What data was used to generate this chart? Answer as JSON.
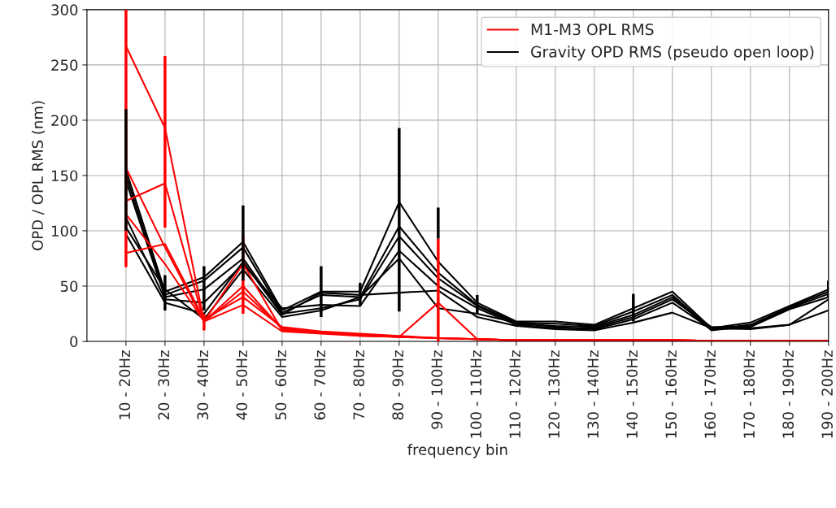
{
  "chart_data": {
    "type": "line",
    "xlabel": "frequency bin",
    "ylabel": "OPD / OPL RMS (nm)",
    "categories": [
      "10 - 20Hz",
      "20 - 30Hz",
      "30 - 40Hz",
      "40 - 50Hz",
      "50 - 60Hz",
      "60 - 70Hz",
      "70 - 80Hz",
      "80 - 90Hz",
      "90 - 100Hz",
      "100 - 110Hz",
      "110 - 120Hz",
      "120 - 130Hz",
      "130 - 140Hz",
      "140 - 150Hz",
      "150 - 160Hz",
      "160 - 170Hz",
      "170 - 180Hz",
      "180 - 190Hz",
      "190 - 200Hz"
    ],
    "ylim": [
      0,
      300
    ],
    "yticks": [
      0,
      50,
      100,
      150,
      200,
      250,
      300
    ],
    "grid": true,
    "legend": "top right",
    "marker": "none",
    "line_style": "solid",
    "series": [
      {
        "name": "M1-M3 OPL RMS",
        "color": "#ff0000",
        "values": [
          267,
          193,
          18,
          45,
          12,
          8,
          6,
          4,
          3,
          2,
          1,
          1,
          1,
          1,
          1,
          0.5,
          0.5,
          0.5,
          0.5
        ],
        "errors": [
          [
            67,
            300
          ],
          [
            103,
            258
          ],
          [
            10,
            25
          ],
          null,
          null,
          null,
          null,
          null,
          null,
          null,
          null,
          null,
          null,
          null,
          null,
          null,
          null,
          null,
          null
        ]
      },
      {
        "color": "#ff0000",
        "values": [
          127,
          143,
          18,
          70,
          10,
          8,
          5,
          4,
          35,
          2,
          1,
          1,
          1,
          1,
          1,
          0.5,
          0.5,
          0.5,
          0.5
        ],
        "errors": [
          null,
          null,
          null,
          [
            25,
            95
          ],
          null,
          null,
          null,
          null,
          [
            0,
            93
          ],
          null,
          null,
          null,
          null,
          null,
          null,
          null,
          null,
          null,
          null
        ]
      },
      {
        "color": "#ff0000",
        "values": [
          80,
          88,
          20,
          40,
          13,
          9,
          7,
          5,
          3,
          2,
          1,
          1,
          1,
          1,
          1,
          0.5,
          0.5,
          0.5,
          0.5
        ]
      },
      {
        "color": "#ff0000",
        "values": [
          157,
          85,
          18,
          33,
          9,
          7,
          5,
          4,
          3,
          2,
          1,
          1,
          1,
          1,
          1,
          0.5,
          0.5,
          0.5,
          0.5
        ]
      },
      {
        "color": "#ff0000",
        "values": [
          115,
          70,
          18,
          50,
          11,
          8,
          6,
          4,
          3,
          2,
          1,
          1,
          1,
          1,
          1,
          0.5,
          0.5,
          0.5,
          0.5
        ]
      },
      {
        "name": "Gravity OPD RMS (pseudo open loop)",
        "color": "#000000",
        "values": [
          155,
          45,
          58,
          90,
          28,
          45,
          45,
          126,
          72,
          35,
          18,
          18,
          15,
          30,
          45,
          12,
          17,
          32,
          47
        ],
        "errors": [
          [
            100,
            210
          ],
          [
            28,
            60
          ],
          [
            28,
            68
          ],
          [
            55,
            123
          ],
          null,
          [
            22,
            68
          ],
          [
            32,
            53
          ],
          [
            27,
            193
          ],
          [
            93,
            121
          ],
          [
            25,
            42
          ],
          null,
          null,
          null,
          [
            18,
            43
          ],
          null,
          null,
          null,
          null,
          [
            40,
            55
          ]
        ]
      },
      {
        "color": "#000000",
        "values": [
          150,
          42,
          55,
          85,
          26,
          42,
          40,
          104,
          62,
          33,
          17,
          16,
          14,
          27,
          42,
          11,
          15,
          31,
          45
        ]
      },
      {
        "color": "#000000",
        "values": [
          145,
          40,
          47,
          75,
          25,
          30,
          38,
          95,
          57,
          32,
          16,
          14,
          13,
          24,
          40,
          10,
          14,
          30,
          43
        ]
      },
      {
        "color": "#000000",
        "values": [
          112,
          38,
          35,
          70,
          30,
          33,
          32,
          82,
          50,
          30,
          15,
          12,
          12,
          22,
          38,
          13,
          13,
          29,
          40
        ]
      },
      {
        "color": "#000000",
        "values": [
          103,
          47,
          20,
          65,
          22,
          28,
          40,
          75,
          30,
          25,
          17,
          13,
          11,
          20,
          35,
          11,
          12,
          15,
          38
        ]
      },
      {
        "color": "#000000",
        "values": [
          97,
          35,
          25,
          72,
          24,
          44,
          42,
          44,
          46,
          22,
          14,
          11,
          10,
          17,
          26,
          12,
          11,
          15,
          28
        ]
      }
    ]
  }
}
